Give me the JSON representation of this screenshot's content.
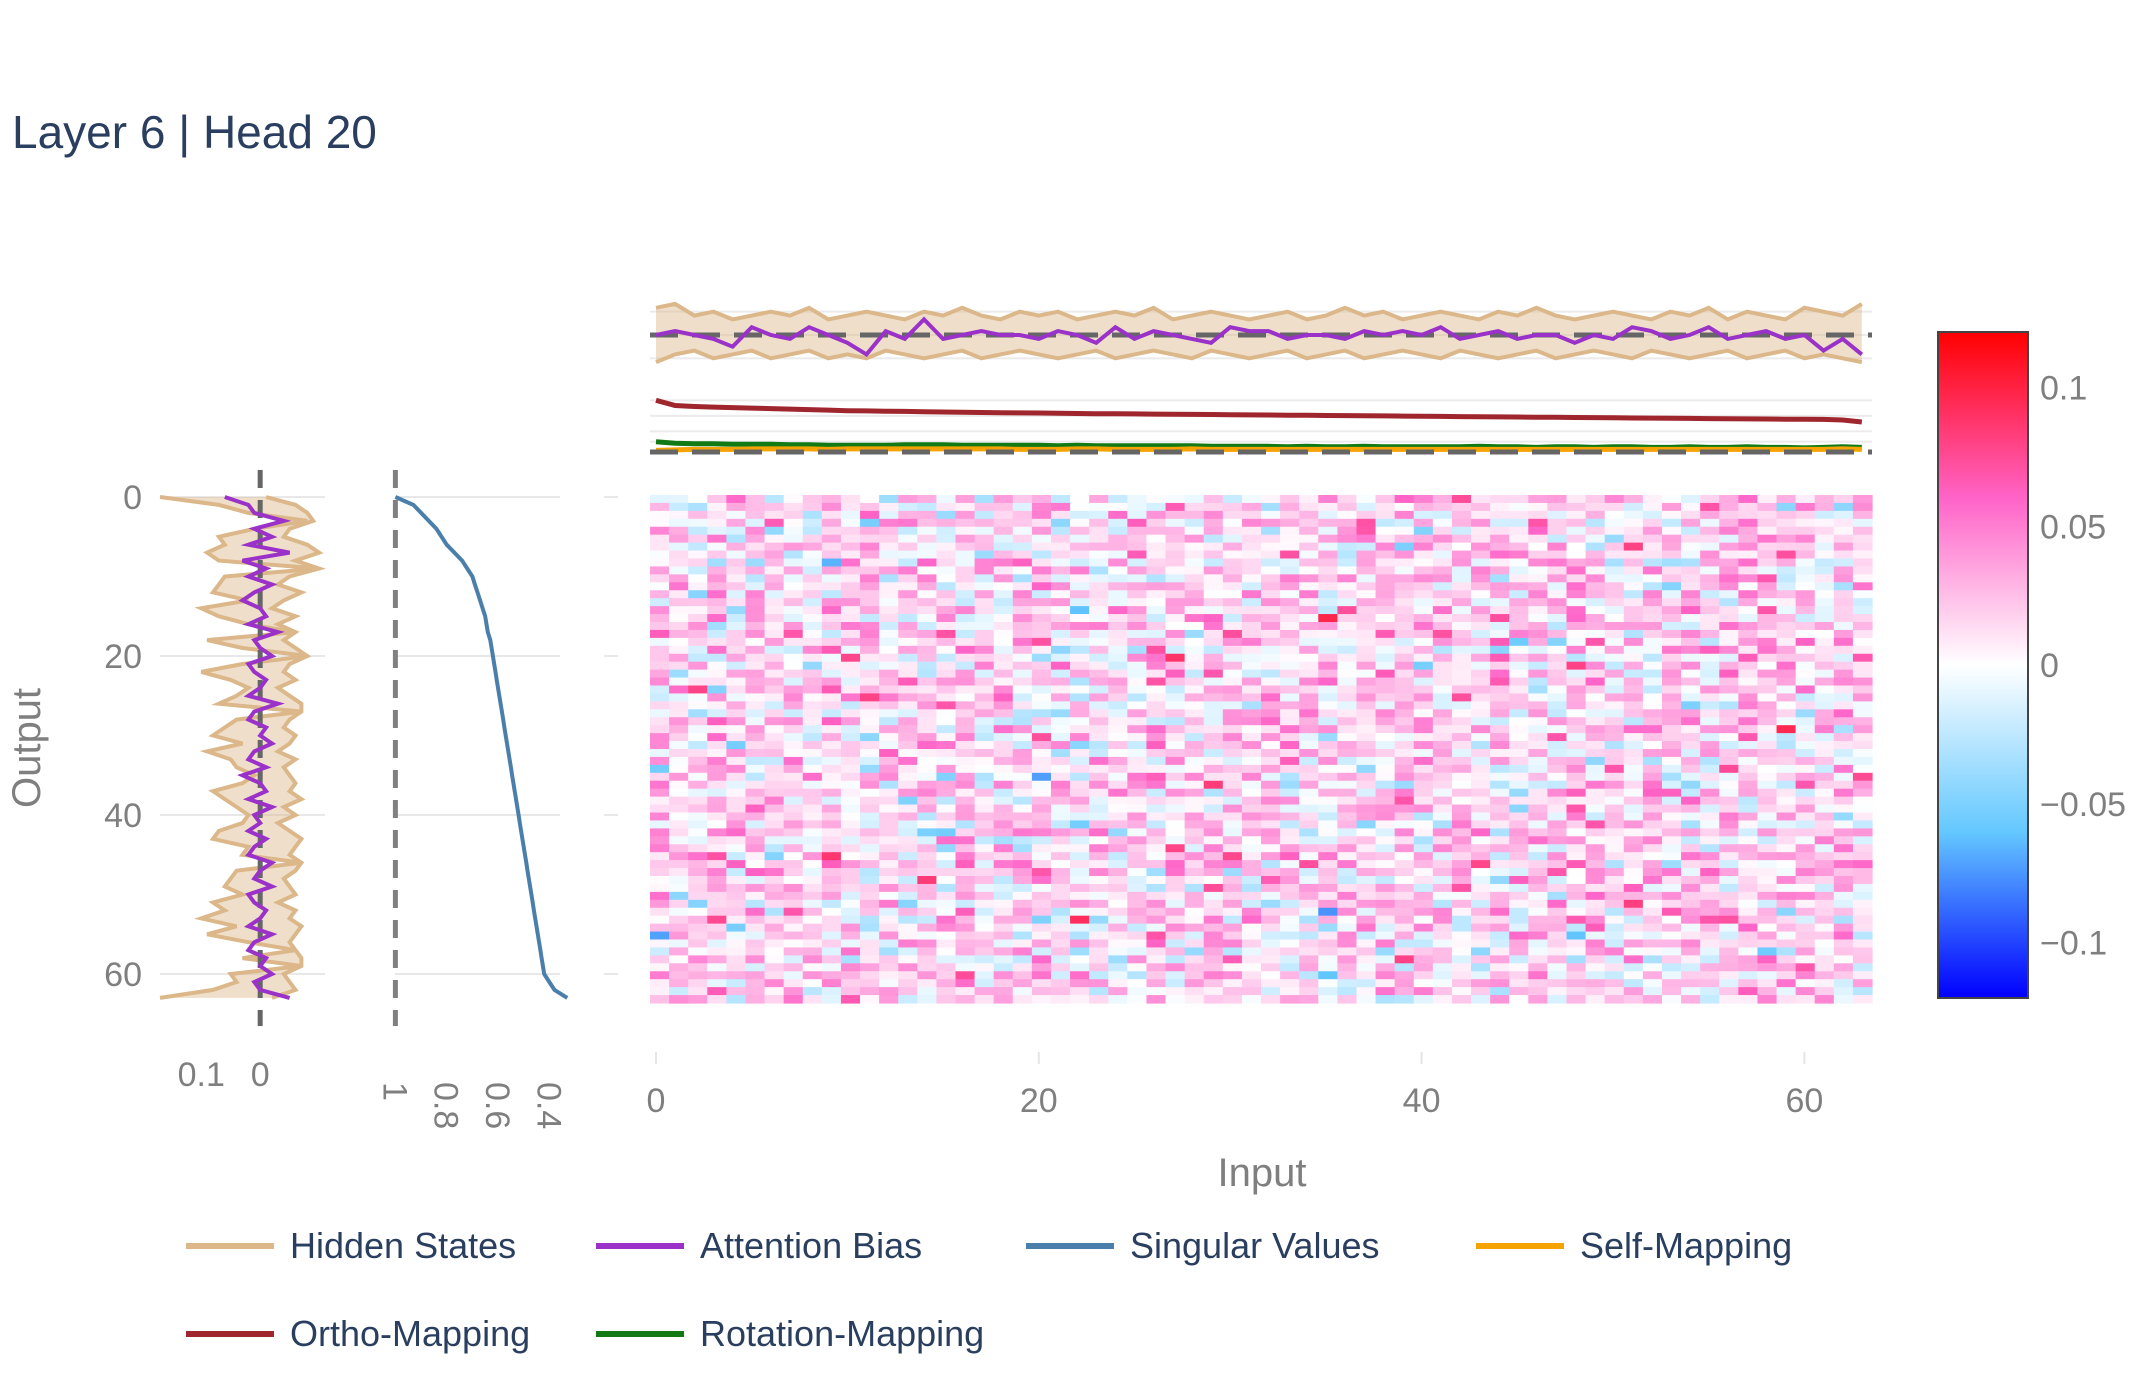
{
  "title": "Layer 6 | Head 20",
  "colors": {
    "hidden": "#dbb78a",
    "hidden_fill": "rgba(219,183,138,0.45)",
    "attention": "#9a31c8",
    "singular": "#4a7fab",
    "self": "#f5a300",
    "ortho": "#a0262e",
    "rotation": "#117a14",
    "dashed": "#666666"
  },
  "chart_data": [
    {
      "id": "heatmap",
      "type": "heatmap",
      "xlabel": "Input",
      "ylabel": "Output",
      "x_ticks": [
        "0",
        "20",
        "40",
        "60"
      ],
      "y_ticks": [
        "0",
        "20",
        "40",
        "60"
      ],
      "rows": 64,
      "cols": 64,
      "zlim": [
        -0.12,
        0.12
      ],
      "colorbar_ticks": [
        "0.1",
        "0.05",
        "0",
        "−0.05",
        "−0.1"
      ],
      "colorbar_values": [
        0.1,
        0.05,
        0,
        -0.05,
        -0.1
      ],
      "colorscale": [
        "#0000ff",
        "#64c8ff",
        "#ffffff",
        "#ff64c8",
        "#ff0000"
      ]
    },
    {
      "id": "left-profile",
      "type": "line",
      "x_ticks": [
        "0.1",
        "0"
      ],
      "x_tick_values": [
        0.1,
        0
      ],
      "xlim": [
        0.17,
        -0.11
      ],
      "hidden_states": [
        0.17,
        0.07,
        0.02,
        -0.08,
        0.01,
        0.07,
        0.06,
        0.09,
        0.07,
        -0.1,
        0.06,
        0.07,
        0.08,
        0.02,
        0.1,
        0.07,
        0.02,
        -0.06,
        0.09,
        0.03,
        -0.08,
        0.03,
        0.1,
        0.05,
        0.02,
        0.04,
        0.07,
        -0.07,
        0.04,
        0.06,
        0.08,
        0.03,
        0.09,
        0.05,
        0.04,
        0.01,
        0.03,
        0.08,
        0.06,
        0.04,
        0.02,
        0.03,
        0.07,
        0.08,
        0.02,
        0.03,
        -0.07,
        0.04,
        0.05,
        0.06,
        0.03,
        0.08,
        0.06,
        0.1,
        0.04,
        0.09,
        0.02,
        -0.06,
        0.03,
        -0.07,
        0.05,
        0.04,
        0.08,
        0.17
      ],
      "hidden_band_lo": [
        -0.01,
        -0.06,
        -0.08,
        -0.09,
        -0.05,
        -0.04,
        -0.08,
        -0.1,
        -0.06,
        -0.1,
        -0.05,
        -0.03,
        -0.07,
        -0.04,
        -0.02,
        -0.06,
        -0.03,
        -0.06,
        -0.04,
        -0.06,
        -0.08,
        -0.05,
        -0.04,
        -0.06,
        -0.03,
        -0.05,
        -0.07,
        -0.07,
        -0.05,
        -0.04,
        -0.06,
        -0.05,
        -0.03,
        -0.06,
        -0.04,
        -0.05,
        -0.06,
        -0.05,
        -0.07,
        -0.04,
        -0.06,
        -0.03,
        -0.05,
        -0.07,
        -0.06,
        -0.05,
        -0.07,
        -0.06,
        -0.04,
        -0.05,
        -0.06,
        -0.03,
        -0.06,
        -0.05,
        -0.07,
        -0.06,
        -0.05,
        -0.06,
        -0.07,
        -0.07,
        -0.04,
        -0.05,
        -0.06,
        -0.02
      ],
      "attention_bias": [
        0.06,
        0.02,
        0.01,
        -0.04,
        0.01,
        -0.02,
        0.02,
        -0.05,
        0.03,
        -0.01,
        0.02,
        -0.02,
        0.01,
        0.03,
        0.0,
        -0.01,
        0.02,
        -0.03,
        0.01,
        0.0,
        -0.02,
        0.02,
        0.01,
        -0.01,
        0.0,
        0.02,
        -0.03,
        0.01,
        0.02,
        -0.01,
        0.0,
        -0.02,
        0.01,
        0.02,
        -0.01,
        0.03,
        0.0,
        -0.01,
        0.02,
        -0.02,
        0.01,
        0.0,
        0.02,
        -0.01,
        0.01,
        0.02,
        -0.02,
        0.0,
        0.01,
        -0.02,
        0.02,
        0.01,
        -0.01,
        0.0,
        0.02,
        -0.02,
        0.01,
        0.02,
        -0.01,
        0.0,
        -0.02,
        0.01,
        0.0,
        -0.05
      ]
    },
    {
      "id": "singular-values",
      "type": "line",
      "x_ticks": [
        "1",
        "0.8",
        "0.6",
        "0.4"
      ],
      "x_tick_values": [
        1,
        0.8,
        0.6,
        0.4
      ],
      "xlim": [
        1.06,
        0.3
      ],
      "values": [
        1.0,
        0.93,
        0.9,
        0.87,
        0.84,
        0.82,
        0.8,
        0.77,
        0.74,
        0.72,
        0.7,
        0.69,
        0.68,
        0.67,
        0.66,
        0.65,
        0.645,
        0.64,
        0.63,
        0.625,
        0.62,
        0.615,
        0.61,
        0.605,
        0.6,
        0.595,
        0.59,
        0.585,
        0.58,
        0.575,
        0.57,
        0.565,
        0.56,
        0.555,
        0.55,
        0.545,
        0.54,
        0.535,
        0.53,
        0.525,
        0.52,
        0.515,
        0.51,
        0.505,
        0.5,
        0.495,
        0.49,
        0.485,
        0.48,
        0.475,
        0.47,
        0.465,
        0.46,
        0.455,
        0.45,
        0.445,
        0.44,
        0.435,
        0.43,
        0.425,
        0.42,
        0.4,
        0.38,
        0.33
      ]
    },
    {
      "id": "top-hidden",
      "type": "line",
      "series_lines": [
        "hidden_states",
        "attention_bias"
      ],
      "ylim": [
        -0.09,
        0.09
      ],
      "hidden_upper": [
        0.07,
        0.08,
        0.05,
        0.06,
        0.04,
        0.05,
        0.06,
        0.05,
        0.07,
        0.04,
        0.05,
        0.06,
        0.05,
        0.04,
        0.06,
        0.05,
        0.07,
        0.05,
        0.04,
        0.06,
        0.05,
        0.06,
        0.04,
        0.05,
        0.06,
        0.05,
        0.07,
        0.04,
        0.05,
        0.06,
        0.05,
        0.04,
        0.05,
        0.06,
        0.04,
        0.05,
        0.07,
        0.05,
        0.06,
        0.04,
        0.05,
        0.06,
        0.05,
        0.04,
        0.06,
        0.05,
        0.07,
        0.05,
        0.04,
        0.05,
        0.06,
        0.05,
        0.04,
        0.06,
        0.05,
        0.07,
        0.04,
        0.06,
        0.05,
        0.04,
        0.07,
        0.06,
        0.05,
        0.08
      ],
      "hidden_lower": [
        -0.07,
        -0.05,
        -0.04,
        -0.06,
        -0.05,
        -0.04,
        -0.06,
        -0.05,
        -0.04,
        -0.06,
        -0.05,
        -0.06,
        -0.04,
        -0.05,
        -0.06,
        -0.05,
        -0.04,
        -0.06,
        -0.05,
        -0.04,
        -0.05,
        -0.06,
        -0.05,
        -0.04,
        -0.06,
        -0.05,
        -0.04,
        -0.05,
        -0.06,
        -0.04,
        -0.05,
        -0.06,
        -0.05,
        -0.04,
        -0.06,
        -0.05,
        -0.04,
        -0.06,
        -0.05,
        -0.04,
        -0.05,
        -0.06,
        -0.04,
        -0.05,
        -0.06,
        -0.05,
        -0.04,
        -0.06,
        -0.05,
        -0.04,
        -0.05,
        -0.06,
        -0.04,
        -0.05,
        -0.06,
        -0.05,
        -0.04,
        -0.06,
        -0.05,
        -0.04,
        -0.06,
        -0.05,
        -0.06,
        -0.07
      ],
      "attention_bias": [
        0.0,
        0.01,
        0.0,
        -0.01,
        -0.03,
        0.02,
        0.0,
        -0.01,
        0.02,
        0.0,
        -0.02,
        -0.05,
        0.01,
        -0.01,
        0.04,
        -0.01,
        0.0,
        0.01,
        0.0,
        0.0,
        -0.01,
        0.01,
        0.0,
        -0.02,
        0.02,
        -0.01,
        0.01,
        0.0,
        -0.01,
        -0.02,
        0.02,
        0.01,
        0.01,
        -0.01,
        0.0,
        0.0,
        -0.01,
        0.01,
        0.0,
        0.01,
        0.0,
        0.02,
        -0.01,
        0.0,
        0.01,
        -0.01,
        0.0,
        0.0,
        -0.02,
        0.0,
        -0.01,
        0.02,
        0.01,
        -0.01,
        0.0,
        0.02,
        -0.01,
        0.0,
        0.01,
        -0.01,
        0.0,
        -0.04,
        -0.01,
        -0.05
      ]
    },
    {
      "id": "top-mappings",
      "type": "line",
      "ylim": [
        0.0,
        0.12
      ],
      "ortho": [
        0.1,
        0.09,
        0.088,
        0.087,
        0.086,
        0.085,
        0.084,
        0.083,
        0.082,
        0.081,
        0.08,
        0.0795,
        0.079,
        0.0785,
        0.078,
        0.0775,
        0.077,
        0.0765,
        0.076,
        0.0757,
        0.0754,
        0.075,
        0.0746,
        0.0742,
        0.074,
        0.0737,
        0.0734,
        0.0731,
        0.0728,
        0.0725,
        0.0722,
        0.0719,
        0.0716,
        0.0713,
        0.071,
        0.0707,
        0.0704,
        0.0701,
        0.0698,
        0.0695,
        0.0692,
        0.0689,
        0.0686,
        0.0683,
        0.068,
        0.0677,
        0.0674,
        0.0671,
        0.0668,
        0.0665,
        0.0662,
        0.0659,
        0.0656,
        0.0653,
        0.065,
        0.0647,
        0.0644,
        0.0641,
        0.0638,
        0.0635,
        0.0632,
        0.063,
        0.062,
        0.058
      ],
      "rotation": [
        0.02,
        0.017,
        0.016,
        0.016,
        0.015,
        0.015,
        0.015,
        0.014,
        0.014,
        0.013,
        0.013,
        0.013,
        0.013,
        0.014,
        0.014,
        0.014,
        0.013,
        0.013,
        0.013,
        0.013,
        0.013,
        0.012,
        0.013,
        0.012,
        0.012,
        0.012,
        0.012,
        0.012,
        0.012,
        0.011,
        0.011,
        0.011,
        0.011,
        0.01,
        0.011,
        0.01,
        0.01,
        0.011,
        0.01,
        0.01,
        0.01,
        0.01,
        0.01,
        0.011,
        0.01,
        0.01,
        0.009,
        0.01,
        0.01,
        0.009,
        0.01,
        0.01,
        0.009,
        0.009,
        0.01,
        0.009,
        0.009,
        0.01,
        0.009,
        0.009,
        0.008,
        0.009,
        0.01,
        0.009
      ],
      "self": [
        0.003,
        0.004,
        0.005,
        0.005,
        0.005,
        0.006,
        0.006,
        0.006,
        0.006,
        0.005,
        0.006,
        0.006,
        0.006,
        0.006,
        0.006,
        0.006,
        0.006,
        0.006,
        0.006,
        0.005,
        0.005,
        0.005,
        0.006,
        0.006,
        0.005,
        0.005,
        0.005,
        0.005,
        0.006,
        0.005,
        0.005,
        0.005,
        0.005,
        0.005,
        0.005,
        0.005,
        0.005,
        0.005,
        0.005,
        0.005,
        0.005,
        0.005,
        0.005,
        0.005,
        0.005,
        0.005,
        0.005,
        0.005,
        0.005,
        0.005,
        0.005,
        0.005,
        0.005,
        0.005,
        0.005,
        0.005,
        0.005,
        0.005,
        0.005,
        0.005,
        0.005,
        0.005,
        0.006,
        0.005
      ]
    }
  ],
  "legend": [
    {
      "label": "Hidden States",
      "color": "#dbb78a"
    },
    {
      "label": "Attention Bias",
      "color": "#9a31c8"
    },
    {
      "label": "Singular Values",
      "color": "#4a7fab"
    },
    {
      "label": "Self-Mapping",
      "color": "#f5a300"
    },
    {
      "label": "Ortho-Mapping",
      "color": "#a0262e"
    },
    {
      "label": "Rotation-Mapping",
      "color": "#117a14"
    }
  ]
}
